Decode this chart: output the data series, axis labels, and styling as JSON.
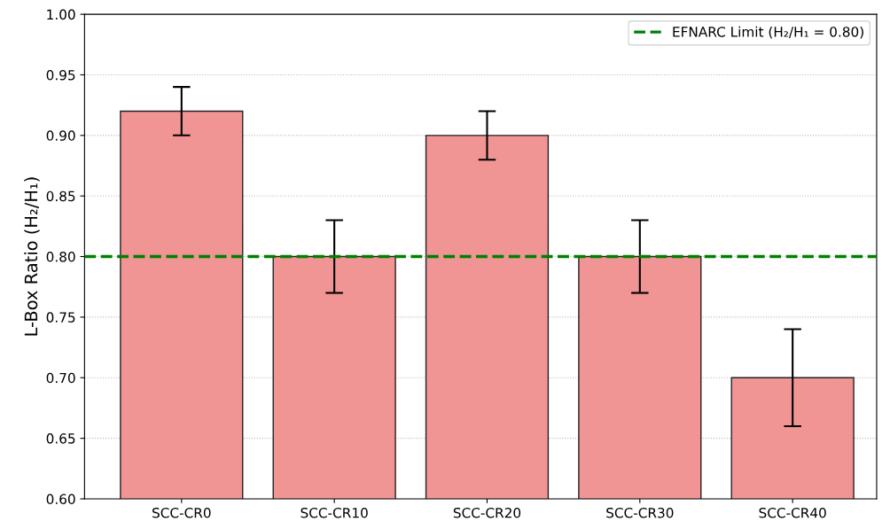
{
  "chart_data": {
    "type": "bar",
    "ylabel": "L-Box Ratio (H₂/H₁)",
    "categories": [
      "SCC-CR0",
      "SCC-CR10",
      "SCC-CR20",
      "SCC-CR30",
      "SCC-CR40"
    ],
    "values": [
      0.92,
      0.8,
      0.9,
      0.8,
      0.7
    ],
    "errors": [
      0.02,
      0.03,
      0.02,
      0.03,
      0.04
    ],
    "color": "#f09494",
    "ylim": [
      0.6,
      1.0
    ],
    "yticks": [
      {
        "value": 0.6,
        "label": "0.60"
      },
      {
        "value": 0.65,
        "label": "0.65"
      },
      {
        "value": 0.7,
        "label": "0.70"
      },
      {
        "value": 0.75,
        "label": "0.75"
      },
      {
        "value": 0.8,
        "label": "0.80"
      },
      {
        "value": 0.85,
        "label": "0.85"
      },
      {
        "value": 0.9,
        "label": "0.90"
      },
      {
        "value": 0.95,
        "label": "0.95"
      },
      {
        "value": 1.0,
        "label": "1.00"
      }
    ],
    "ref_lines": [
      {
        "axis": "y",
        "value": 0.8,
        "label": "EFNARC Limit (H₂/H₁ = 0.80)",
        "color": "#008000",
        "line_style": "dashed"
      }
    ],
    "grid": "y",
    "legend": "top right"
  }
}
